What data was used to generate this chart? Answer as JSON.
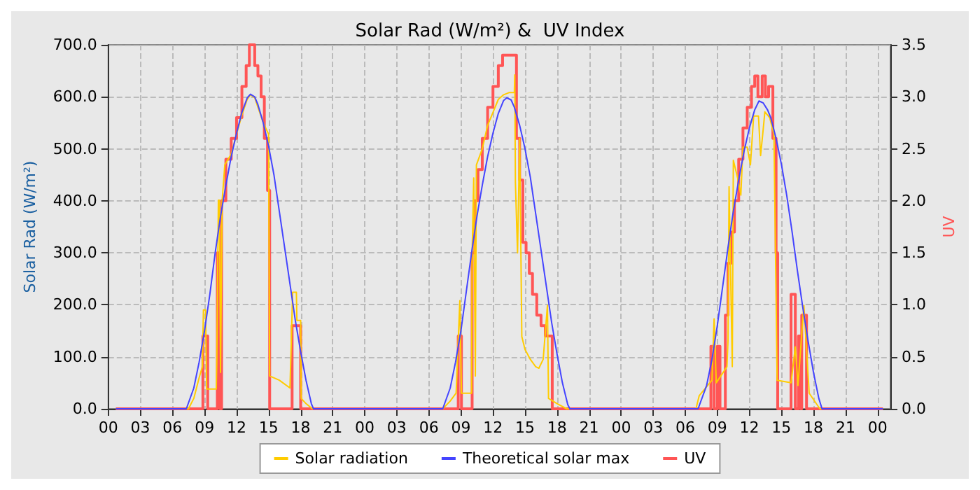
{
  "chart_data": {
    "type": "line",
    "title": "Solar Rad (W/m²) &  UV Index",
    "ylabel": "Solar Rad (W/m²)",
    "y2label": "UV",
    "xlim": [
      0,
      73.2
    ],
    "xticks": [
      {
        "value": 0,
        "label": "00"
      },
      {
        "value": 3,
        "label": "03"
      },
      {
        "value": 6,
        "label": "06"
      },
      {
        "value": 9,
        "label": "09"
      },
      {
        "value": 12,
        "label": "12"
      },
      {
        "value": 15,
        "label": "15"
      },
      {
        "value": 18,
        "label": "18"
      },
      {
        "value": 21,
        "label": "21"
      },
      {
        "value": 24,
        "label": "00"
      },
      {
        "value": 27,
        "label": "03"
      },
      {
        "value": 30,
        "label": "06"
      },
      {
        "value": 33,
        "label": "09"
      },
      {
        "value": 36,
        "label": "12"
      },
      {
        "value": 39,
        "label": "15"
      },
      {
        "value": 42,
        "label": "18"
      },
      {
        "value": 45,
        "label": "21"
      },
      {
        "value": 48,
        "label": "00"
      },
      {
        "value": 51,
        "label": "03"
      },
      {
        "value": 54,
        "label": "06"
      },
      {
        "value": 57,
        "label": "09"
      },
      {
        "value": 60,
        "label": "12"
      },
      {
        "value": 63,
        "label": "15"
      },
      {
        "value": 66,
        "label": "18"
      },
      {
        "value": 69,
        "label": "21"
      },
      {
        "value": 72,
        "label": "00"
      }
    ],
    "ylim": [
      0,
      700
    ],
    "yticks": [
      {
        "value": 0,
        "label": "0.0"
      },
      {
        "value": 100,
        "label": "100.0"
      },
      {
        "value": 200,
        "label": "200.0"
      },
      {
        "value": 300,
        "label": "300.0"
      },
      {
        "value": 400,
        "label": "400.0"
      },
      {
        "value": 500,
        "label": "500.0"
      },
      {
        "value": 600,
        "label": "600.0"
      },
      {
        "value": 700,
        "label": "700.0"
      }
    ],
    "y2lim": [
      0,
      3.5
    ],
    "y2ticks": [
      {
        "value": 0,
        "label": "0.0"
      },
      0.5,
      {
        "value": 1,
        "label": "1.0"
      },
      1.5,
      {
        "value": 2,
        "label": "2.0"
      },
      2.5,
      {
        "value": 3,
        "label": "3.0"
      },
      3.5
    ],
    "grid": true,
    "legend": "bottom",
    "marker": "none",
    "series": [
      {
        "name": "Solar radiation",
        "color": "#ffcc00",
        "x": [
          0.7,
          7.5,
          8,
          8.5,
          8.8,
          8.9,
          9.1,
          9.2,
          10.1,
          10.15,
          10.3,
          10.4,
          10.5,
          10.65,
          10.9,
          11.5,
          12,
          12.5,
          13,
          13.3,
          13.7,
          14,
          14.5,
          15,
          15.1,
          16,
          17,
          17.25,
          17.6,
          17.65,
          18,
          18.05,
          18.5,
          19.1,
          31.3,
          32,
          32.55,
          32.9,
          33.05,
          34,
          34.05,
          34.2,
          34.35,
          34.45,
          35,
          35.5,
          36,
          36.5,
          37,
          37.5,
          38,
          38.04,
          38.1,
          38.3,
          38.5,
          38.7,
          39,
          39.5,
          40,
          40.3,
          40.7,
          41.1,
          41.2,
          42,
          42.9,
          55,
          55.3,
          56.5,
          56.7,
          56.9,
          57.9,
          58,
          58.1,
          58.4,
          58.5,
          58.9,
          59.2,
          59.4,
          59.8,
          60.1,
          60.4,
          60.85,
          61.05,
          61.25,
          61.45,
          61.9,
          62.3,
          62.6,
          63.9,
          64.3,
          64.55,
          65.1,
          65.6,
          66.6,
          72.5
        ],
        "values": [
          0,
          0,
          20,
          60,
          81,
          190,
          190,
          38,
          38,
          89,
          401,
          401,
          70,
          400,
          469,
          490,
          528,
          565,
          595,
          604,
          598,
          580,
          550,
          528,
          63,
          55,
          40,
          224,
          224,
          170,
          170,
          20,
          10,
          0,
          0,
          15,
          30,
          208,
          30,
          30,
          300,
          444,
          63,
          469,
          500,
          545,
          570,
          595,
          604,
          608,
          608,
          642,
          436,
          300,
          520,
          139,
          114,
          95,
          81,
          78,
          95,
          199,
          20,
          10,
          0,
          0,
          25,
          55,
          173,
          50,
          81,
          131,
          427,
          81,
          478,
          444,
          411,
          503,
          503,
          469,
          563,
          563,
          487,
          528,
          571,
          560,
          528,
          55,
          50,
          119,
          45,
          199,
          30,
          0,
          0
        ]
      },
      {
        "name": "Theoretical solar max",
        "color": "#4444ff",
        "x": [
          0.7,
          7.3,
          8,
          8.5,
          9,
          9.5,
          10,
          10.5,
          11,
          11.5,
          12,
          12.5,
          13,
          13.3,
          13.7,
          14,
          14.5,
          15,
          15.5,
          16,
          16.5,
          17,
          17.5,
          18,
          18.5,
          19,
          19.2,
          31.3,
          32,
          32.5,
          33,
          33.5,
          34,
          34.5,
          35,
          35.5,
          36,
          36.5,
          37,
          37.3,
          37.7,
          38,
          38.5,
          39,
          39.5,
          40,
          40.5,
          41,
          41.5,
          42,
          42.5,
          43,
          43.2,
          55.2,
          56,
          56.5,
          57,
          57.5,
          58,
          58.5,
          59,
          59.5,
          60,
          60.5,
          60.9,
          61.3,
          61.7,
          62,
          62.5,
          63,
          63.5,
          64,
          64.5,
          65,
          65.5,
          66,
          66.5,
          66.8,
          72.5
        ],
        "values": [
          0,
          0,
          40,
          90,
          150,
          220,
          300,
          370,
          430,
          485,
          530,
          570,
          598,
          605,
          600,
          585,
          550,
          505,
          450,
          380,
          310,
          240,
          170,
          110,
          55,
          10,
          0,
          0,
          40,
          90,
          150,
          225,
          300,
          370,
          430,
          485,
          530,
          568,
          593,
          598,
          594,
          580,
          545,
          500,
          445,
          375,
          305,
          235,
          165,
          105,
          50,
          8,
          0,
          0,
          45,
          95,
          160,
          235,
          310,
          380,
          440,
          495,
          540,
          575,
          592,
          588,
          575,
          560,
          520,
          470,
          410,
          340,
          265,
          195,
          130,
          70,
          20,
          0,
          0
        ]
      },
      {
        "name": "UV",
        "color": "#ff5555",
        "type": "step",
        "axis": "y2",
        "x": [
          0.7,
          8.85,
          9.3,
          10.2,
          10.45,
          10.6,
          11,
          11.5,
          12,
          12.5,
          12.9,
          13.2,
          13.7,
          14,
          14.3,
          14.6,
          14.9,
          15.1,
          17.2,
          18,
          32.75,
          33.05,
          34.05,
          34.3,
          34.6,
          35,
          35.5,
          36,
          36.5,
          36.9,
          38.2,
          38.5,
          38.8,
          39.1,
          39.4,
          39.7,
          40.1,
          40.5,
          40.9,
          41.55,
          56.4,
          56.7,
          57,
          57.25,
          57.75,
          58,
          58.3,
          58.6,
          59,
          59.4,
          59.8,
          60.2,
          60.5,
          60.8,
          61.2,
          61.5,
          61.8,
          62.2,
          62.5,
          62.65,
          63.9,
          64.3,
          64.6,
          64.8,
          64.9,
          65.35,
          72.5
        ],
        "values": [
          0,
          0.7,
          0,
          1.5,
          0,
          2.0,
          2.4,
          2.6,
          2.8,
          3.1,
          3.3,
          3.5,
          3.3,
          3.2,
          3.0,
          2.6,
          2.1,
          0,
          0.8,
          0,
          0.7,
          0,
          1.5,
          2.0,
          2.3,
          2.6,
          2.9,
          3.1,
          3.3,
          3.4,
          2.6,
          2.2,
          1.6,
          1.5,
          1.3,
          1.1,
          0.9,
          0.8,
          0.7,
          0,
          0.6,
          0,
          0.6,
          0,
          0.9,
          1.4,
          1.7,
          2.0,
          2.4,
          2.7,
          2.9,
          3.1,
          3.2,
          3.0,
          3.2,
          3.0,
          3.1,
          2.6,
          1.5,
          0,
          1.1,
          0,
          0.7,
          0,
          0.9,
          0,
          0
        ]
      }
    ]
  }
}
